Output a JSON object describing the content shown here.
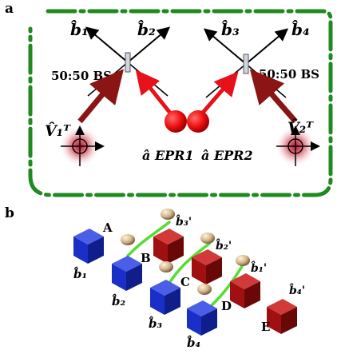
{
  "panel_a": {
    "label": "a",
    "beam_splitter_left_label": "50:50 BS",
    "beam_splitter_right_label": "50:50 BS",
    "outputs": [
      "b̂₁",
      "b̂₂",
      "b̂₃",
      "b̂₄"
    ],
    "vacuum_left": "V̂₁ᵀ",
    "vacuum_right": "V̂₂ᵀ",
    "epr_left": "â EPR1",
    "epr_right": "â EPR2",
    "colors": {
      "frame": "#1f8a1f",
      "beam_red": "#e8101a",
      "beam_dark": "#8b1414"
    }
  },
  "panel_b": {
    "label": "b",
    "node_labels": [
      "A",
      "B",
      "C",
      "D",
      "E"
    ],
    "blue_modes": [
      "b̂₁",
      "b̂₂",
      "b̂₃",
      "b̂₄"
    ],
    "red_modes": [
      "b̂₃'",
      "b̂₂'",
      "b̂₁'",
      "b̂₄'"
    ],
    "colors": {
      "blue_cube": "#1a2fc8",
      "red_cube": "#a01010",
      "link": "#55dd33"
    }
  }
}
